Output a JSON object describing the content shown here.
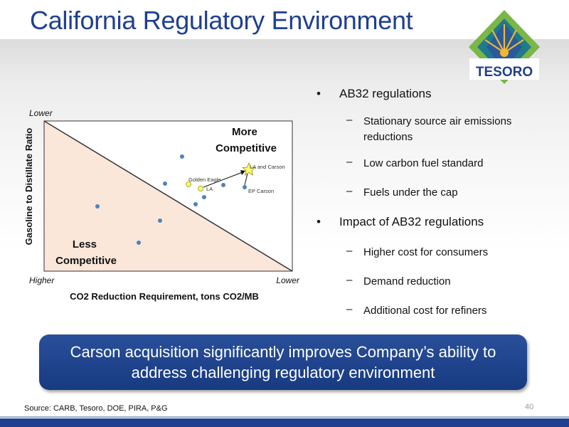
{
  "slide": {
    "title": "California Regulatory Environment",
    "page_number": "40",
    "source": "Source:  CARB, Tesoro, DOE, PIRA, P&G"
  },
  "logo": {
    "text": "TESORO"
  },
  "chart": {
    "y_title": "Gasoline to Distillate Ratio",
    "x_title": "CO2 Reduction Requirement, tons CO2/MB",
    "y_top_label": "Lower",
    "x_left_label": "Higher",
    "x_right_label": "Lower",
    "region_upper": [
      "More",
      "Competitive"
    ],
    "region_lower": [
      "Less",
      "Competitive"
    ],
    "point_labels": {
      "golden_eagle": "Golden Eagle",
      "la": "LA",
      "la_and_carson": "LA and Carson",
      "ep_carson": "EP Carson"
    }
  },
  "bullets": [
    {
      "text": "AB32 regulations",
      "subs": [
        "Stationary source air emissions reductions",
        "Low carbon fuel standard",
        "Fuels under the cap"
      ]
    },
    {
      "text": "Impact of AB32 regulations",
      "subs": [
        "Higher cost for consumers",
        "Demand reduction",
        "Additional cost for refiners"
      ]
    }
  ],
  "callout": {
    "line1": "Carson acquisition significantly improves Company’s ability to",
    "line2": "address challenging regulatory environment"
  },
  "colors": {
    "title": "#1f3f8f",
    "callout": "#1f4289",
    "chart_fill": "#fbe6da",
    "point": "#4f81bd",
    "highlight": "#ffff66"
  }
}
